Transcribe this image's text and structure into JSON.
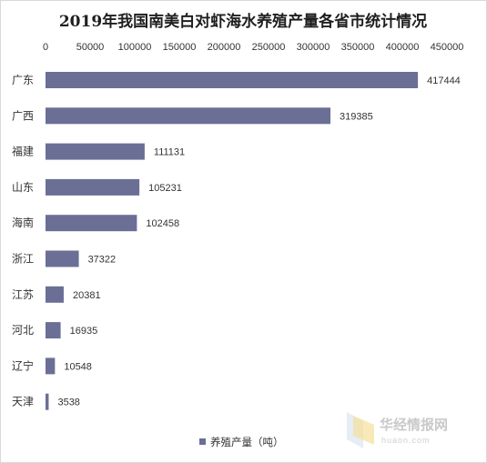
{
  "chart_data": {
    "type": "bar",
    "orientation": "horizontal",
    "title": "2019年我国南美白对虾海水养殖产量各省市统计情况",
    "categories": [
      "广东",
      "广西",
      "福建",
      "山东",
      "海南",
      "浙江",
      "江苏",
      "河北",
      "辽宁",
      "天津"
    ],
    "series": [
      {
        "name": "养殖产量（吨）",
        "values": [
          417444,
          319385,
          111131,
          105231,
          102458,
          37322,
          20381,
          16935,
          10548,
          3538
        ],
        "color": "#6b6f96"
      }
    ],
    "xlim": [
      0,
      450000
    ],
    "xticks": [
      "0",
      "50000",
      "100000",
      "150000",
      "200000",
      "250000",
      "300000",
      "350000",
      "400000",
      "450000"
    ],
    "axis_position": "top",
    "grid": false,
    "legend_position": "bottom",
    "data_labels": true
  },
  "watermark": {
    "name": "华经情报网",
    "url": "huaon.com"
  }
}
